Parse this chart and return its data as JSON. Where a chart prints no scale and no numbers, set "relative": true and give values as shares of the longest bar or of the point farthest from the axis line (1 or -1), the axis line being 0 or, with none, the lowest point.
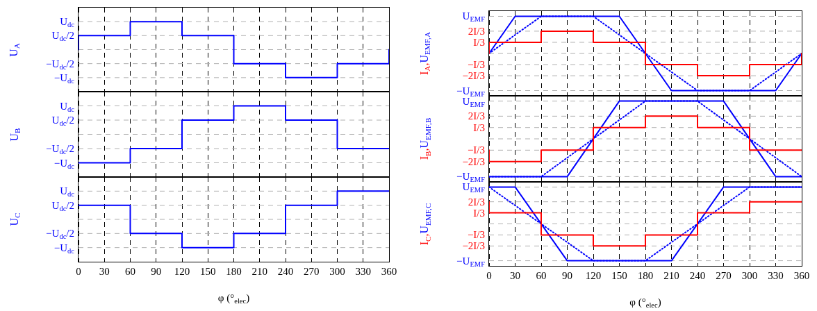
{
  "chart_data": [
    {
      "type": "line",
      "relative": true,
      "ylabel": "U$_{A}$",
      "xlim": [
        0,
        360
      ],
      "xticks": [
        0,
        30,
        60,
        90,
        120,
        150,
        180,
        210,
        240,
        270,
        300,
        330,
        360
      ],
      "grid": "x",
      "tick_labels": false,
      "ref_lines": [
        {
          "axis": "y",
          "value": 1,
          "label": "U$_{dc}$",
          "line_style": "dashed"
        },
        {
          "axis": "y",
          "value": 0.5,
          "label": "U$_{dc}$/2",
          "line_style": "dashed"
        },
        {
          "axis": "y",
          "value": 0,
          "line_style": "dashed"
        },
        {
          "axis": "y",
          "value": -0.5,
          "label": "−U$_{dc}$/2",
          "line_style": "dashed"
        },
        {
          "axis": "y",
          "value": -1,
          "label": "−U$_{dc}$",
          "line_style": "dashed"
        }
      ],
      "series": [
        {
          "color": "#0000ff",
          "x": [
            0,
            0,
            60,
            60,
            120,
            120,
            180,
            180,
            240,
            240,
            300,
            300,
            360,
            360
          ],
          "values": [
            0,
            0.5,
            0.5,
            1,
            1,
            0.5,
            0.5,
            -0.5,
            -0.5,
            -1,
            -1,
            -0.5,
            -0.5,
            0
          ]
        }
      ]
    },
    {
      "type": "line",
      "relative": true,
      "ylabel": "I$_{A}$,U$_{EMF,A}$",
      "xlim": [
        0,
        360
      ],
      "xticks": [
        0,
        30,
        60,
        90,
        120,
        150,
        180,
        210,
        240,
        270,
        300,
        330,
        360
      ],
      "grid": "x",
      "tick_labels": false,
      "ref_lines": [
        {
          "axis": "y",
          "value": 1,
          "label": "U$_{EMF}$",
          "line_style": "dashed"
        },
        {
          "axis": "y",
          "value": 0.6,
          "label": "2I/3",
          "line_style": "dashed"
        },
        {
          "axis": "y",
          "value": 0.3,
          "label": "I/3",
          "line_style": "dashed"
        },
        {
          "axis": "y",
          "value": 0,
          "line_style": "dashed"
        },
        {
          "axis": "y",
          "value": -0.3,
          "label": "−I/3",
          "line_style": "dashed"
        },
        {
          "axis": "y",
          "value": -0.6,
          "label": "−2I/3",
          "line_style": "dashed"
        },
        {
          "axis": "y",
          "value": -1,
          "label": "−U$_{EMF}$",
          "line_style": "dashed"
        }
      ],
      "series": [
        {
          "color": "#ff0000",
          "x": [
            0,
            0,
            60,
            60,
            120,
            120,
            180,
            180,
            240,
            240,
            300,
            300,
            360,
            360
          ],
          "values": [
            0,
            0.3,
            0.3,
            0.6,
            0.6,
            0.3,
            0.3,
            -0.3,
            -0.3,
            -0.6,
            -0.6,
            -0.3,
            -0.3,
            0
          ]
        },
        {
          "color": "#0000ff",
          "x": [
            0,
            30,
            150,
            210,
            330,
            360
          ],
          "values": [
            0,
            1,
            1,
            -1,
            -1,
            0
          ]
        },
        {
          "color": "#0000ff",
          "line_style": "dotted",
          "x": [
            0,
            60,
            120,
            240,
            300,
            360
          ],
          "values": [
            0,
            1,
            1,
            -1,
            -1,
            0
          ]
        }
      ]
    },
    {
      "type": "line",
      "relative": true,
      "ylabel": "U$_{B}$",
      "xlim": [
        0,
        360
      ],
      "xticks": [
        0,
        30,
        60,
        90,
        120,
        150,
        180,
        210,
        240,
        270,
        300,
        330,
        360
      ],
      "grid": "x",
      "tick_labels": false,
      "ref_lines": [
        {
          "axis": "y",
          "value": 1,
          "label": "U$_{dc}$",
          "line_style": "dashed"
        },
        {
          "axis": "y",
          "value": 0.5,
          "label": "U$_{dc}$/2",
          "line_style": "dashed"
        },
        {
          "axis": "y",
          "value": 0,
          "line_style": "dashed"
        },
        {
          "axis": "y",
          "value": -0.5,
          "label": "−U$_{dc}$/2",
          "line_style": "dashed"
        },
        {
          "axis": "y",
          "value": -1,
          "label": "−U$_{dc}$",
          "line_style": "dashed"
        }
      ],
      "series": [
        {
          "color": "#0000ff",
          "x": [
            0,
            60,
            60,
            120,
            120,
            180,
            180,
            240,
            240,
            300,
            300,
            360
          ],
          "values": [
            -1,
            -1,
            -0.5,
            -0.5,
            0.5,
            0.5,
            1,
            1,
            0.5,
            0.5,
            -0.5,
            -0.5
          ]
        }
      ]
    },
    {
      "type": "line",
      "relative": true,
      "ylabel": "I$_{B}$,U$_{EMF,B}$",
      "xlim": [
        0,
        360
      ],
      "xticks": [
        0,
        30,
        60,
        90,
        120,
        150,
        180,
        210,
        240,
        270,
        300,
        330,
        360
      ],
      "grid": "x",
      "tick_labels": false,
      "ref_lines": [
        {
          "axis": "y",
          "value": 1,
          "label": "U$_{EMF}$",
          "line_style": "dashed"
        },
        {
          "axis": "y",
          "value": 0.6,
          "label": "2I/3",
          "line_style": "dashed"
        },
        {
          "axis": "y",
          "value": 0.3,
          "label": "I/3",
          "line_style": "dashed"
        },
        {
          "axis": "y",
          "value": 0,
          "line_style": "dashed"
        },
        {
          "axis": "y",
          "value": -0.3,
          "label": "−I/3",
          "line_style": "dashed"
        },
        {
          "axis": "y",
          "value": -0.6,
          "label": "−2I/3",
          "line_style": "dashed"
        },
        {
          "axis": "y",
          "value": -1,
          "label": "−U$_{EMF}$",
          "line_style": "dashed"
        }
      ],
      "series": [
        {
          "color": "#ff0000",
          "x": [
            0,
            0,
            60,
            60,
            120,
            120,
            180,
            180,
            240,
            240,
            300,
            300,
            360
          ],
          "values": [
            -0.3,
            -0.6,
            -0.6,
            -0.3,
            -0.3,
            0.3,
            0.3,
            0.6,
            0.6,
            0.3,
            0.3,
            -0.3,
            -0.3
          ]
        },
        {
          "color": "#0000ff",
          "x": [
            0,
            90,
            150,
            270,
            330,
            360
          ],
          "values": [
            -1,
            -1,
            1,
            1,
            -1,
            -1
          ]
        },
        {
          "color": "#0000ff",
          "line_style": "dotted",
          "x": [
            0,
            60,
            180,
            240,
            360
          ],
          "values": [
            -1,
            -1,
            1,
            1,
            -1
          ]
        }
      ]
    },
    {
      "type": "line",
      "relative": true,
      "ylabel": "U$_{C}$",
      "xlabel": "φ (°$_{elec}$)",
      "xlim": [
        0,
        360
      ],
      "xticks": [
        0,
        30,
        60,
        90,
        120,
        150,
        180,
        210,
        240,
        270,
        300,
        330,
        360
      ],
      "grid": "x",
      "tick_labels": "x",
      "ref_lines": [
        {
          "axis": "y",
          "value": 1,
          "label": "U$_{dc}$",
          "line_style": "dashed"
        },
        {
          "axis": "y",
          "value": 0.5,
          "label": "U$_{dc}$/2",
          "line_style": "dashed"
        },
        {
          "axis": "y",
          "value": 0,
          "line_style": "dashed"
        },
        {
          "axis": "y",
          "value": -0.5,
          "label": "−U$_{dc}$/2",
          "line_style": "dashed"
        },
        {
          "axis": "y",
          "value": -1,
          "label": "−U$_{dc}$",
          "line_style": "dashed"
        }
      ],
      "series": [
        {
          "color": "#0000ff",
          "x": [
            0,
            60,
            60,
            120,
            120,
            180,
            180,
            240,
            240,
            300,
            300,
            360
          ],
          "values": [
            0.5,
            0.5,
            -0.5,
            -0.5,
            -1,
            -1,
            -0.5,
            -0.5,
            0.5,
            0.5,
            1,
            1
          ]
        }
      ]
    },
    {
      "type": "line",
      "relative": true,
      "ylabel": "I$_{C}$,U$_{EMF,C}$",
      "xlabel": "φ (°$_{elec}$)",
      "xlim": [
        0,
        360
      ],
      "xticks": [
        0,
        30,
        60,
        90,
        120,
        150,
        180,
        210,
        240,
        270,
        300,
        330,
        360
      ],
      "grid": "x",
      "tick_labels": "x",
      "ref_lines": [
        {
          "axis": "y",
          "value": 1,
          "label": "U$_{EMF}$",
          "line_style": "dashed"
        },
        {
          "axis": "y",
          "value": 0.6,
          "label": "2I/3",
          "line_style": "dashed"
        },
        {
          "axis": "y",
          "value": 0.3,
          "label": "I/3",
          "line_style": "dashed"
        },
        {
          "axis": "y",
          "value": 0,
          "line_style": "dashed"
        },
        {
          "axis": "y",
          "value": -0.3,
          "label": "−I/3",
          "line_style": "dashed"
        },
        {
          "axis": "y",
          "value": -0.6,
          "label": "−2I/3",
          "line_style": "dashed"
        },
        {
          "axis": "y",
          "value": -1,
          "label": "−U$_{EMF}$",
          "line_style": "dashed"
        }
      ],
      "series": [
        {
          "color": "#ff0000",
          "x": [
            0,
            0,
            60,
            60,
            120,
            120,
            180,
            180,
            240,
            240,
            300,
            300,
            360
          ],
          "values": [
            0.6,
            0.3,
            0.3,
            -0.3,
            -0.3,
            -0.6,
            -0.6,
            -0.3,
            -0.3,
            0.3,
            0.3,
            0.6,
            0.6
          ]
        },
        {
          "color": "#0000ff",
          "x": [
            0,
            30,
            90,
            210,
            270,
            360
          ],
          "values": [
            1,
            1,
            -1,
            -1,
            1,
            1
          ]
        },
        {
          "color": "#0000ff",
          "line_style": "dotted",
          "x": [
            0,
            120,
            180,
            300,
            360
          ],
          "values": [
            1,
            -1,
            -1,
            1,
            1
          ]
        }
      ]
    }
  ]
}
